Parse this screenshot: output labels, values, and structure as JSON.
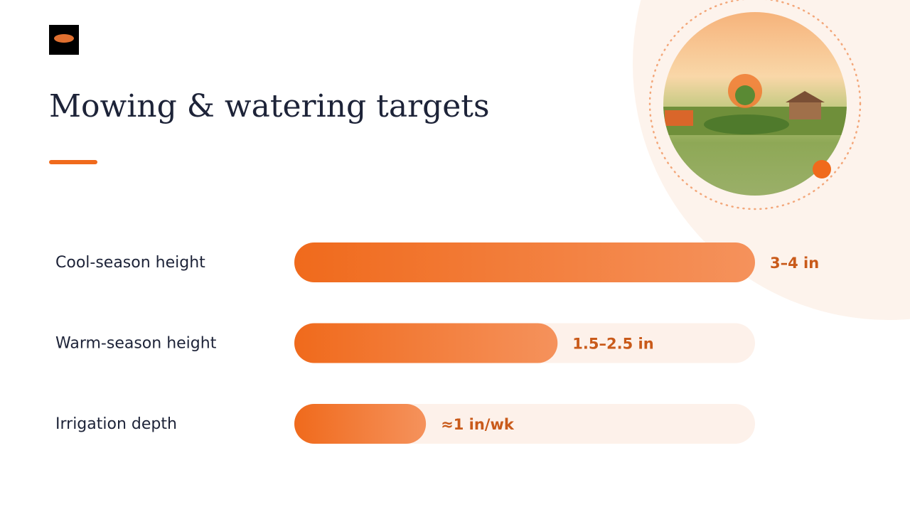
{
  "chart_data": {
    "type": "bar",
    "orientation": "horizontal",
    "title": "Mowing & watering targets",
    "categories": [
      "Cool-season height",
      "Warm-season height",
      "Irrigation depth"
    ],
    "values": [
      3.5,
      2,
      1
    ],
    "value_labels": [
      "3–4 in",
      "1.5–2.5 in",
      "≈1 in/wk"
    ],
    "xlim": [
      0,
      3.5
    ],
    "color": "#f07020"
  }
}
